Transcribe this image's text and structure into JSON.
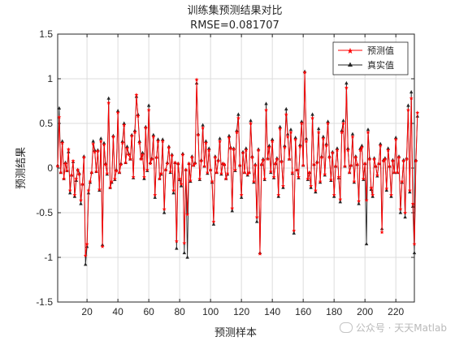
{
  "chart_data": {
    "type": "line",
    "title": "训练集预测结果对比",
    "subtitle": "RMSE=0.081707",
    "xlabel": "预测样本",
    "ylabel": "预测结果",
    "xlim": [
      1,
      232
    ],
    "ylim": [
      -1.5,
      1.5
    ],
    "xticks": [
      20,
      40,
      60,
      80,
      100,
      120,
      140,
      160,
      180,
      200,
      220
    ],
    "yticks": [
      -1.5,
      -1,
      -0.5,
      0,
      0.5,
      1,
      1.5
    ],
    "xtick_labels": [
      "20",
      "40",
      "60",
      "80",
      "100",
      "120",
      "140",
      "160",
      "180",
      "200",
      "220"
    ],
    "ytick_labels": [
      "-1.5",
      "-1",
      "-0.5",
      "0",
      "0.5",
      "1",
      "1.5"
    ],
    "grid": true,
    "legend_position": "top-right",
    "series": [
      {
        "name": "预测值",
        "color": "#ff0000",
        "marker": "star",
        "values": [
          0.02,
          0.57,
          -0.05,
          0.28,
          -0.12,
          0.05,
          -0.03,
          0.21,
          -0.25,
          -0.08,
          0.08,
          -0.3,
          -0.12,
          -0.02,
          -0.07,
          -0.36,
          -0.18,
          0.12,
          -0.98,
          -0.85,
          -0.25,
          -0.15,
          -0.05,
          0.27,
          0.18,
          -0.04,
          0.19,
          -0.24,
          0.3,
          -0.88,
          0.26,
          0.04,
          -0.06,
          0.73,
          -0.22,
          -0.15,
          0.35,
          -0.12,
          -0.03,
          0.62,
          -0.05,
          0.04,
          0.28,
          0.48,
          0.06,
          0.22,
          0.15,
          0.1,
          0.36,
          -0.1,
          0.4,
          0.82,
          0.58,
          0.28,
          0.1,
          0.15,
          -0.1,
          0.45,
          -0.02,
          0.65,
          0.05,
          0.1,
          0.35,
          -0.3,
          0.12,
          0.3,
          -0.12,
          -0.06,
          0.3,
          -0.46,
          -0.02,
          0.05,
          0.23,
          -0.04,
          0.14,
          -0.25,
          0.06,
          -0.82,
          0.05,
          -0.12,
          -0.18,
          0.15,
          -0.84,
          -0.02,
          -0.52,
          0.05,
          -0.14,
          0.12,
          0.03,
          0.05,
          0.99,
          0.37,
          -0.12,
          0.08,
          0.45,
          0.02,
          0.28,
          -0.05,
          0.2,
          -0.02,
          -0.15,
          -0.6,
          0.12,
          -0.05,
          0.08,
          0.3,
          -0.06,
          0.05,
          0.04,
          -0.12,
          -0.06,
          0.34,
          0.22,
          -0.45,
          0.21,
          -0.02,
          0.4,
          0.56,
          0.03,
          -0.3,
          0.17,
          -0.05,
          0.2,
          -0.07,
          -0.05,
          0.5,
          0.12,
          -0.15,
          0.03,
          -0.55,
          0.2,
          -0.96,
          0.04,
          0.09,
          -0.12,
          0.65,
          0.1,
          0.23,
          -0.04,
          0.3,
          -0.1,
          0.05,
          0.1,
          -0.3,
          0.44,
          0.07,
          -0.2,
          0.23,
          0.6,
          0.35,
          0.1,
          0.4,
          -0.05,
          -0.7,
          0.32,
          -0.02,
          -0.1,
          0.24,
          0.5,
          0.03,
          1.07,
          0.3,
          -0.12,
          -0.05,
          -0.2,
          0.56,
          0.04,
          -0.25,
          0.06,
          0.4,
          -0.15,
          0.12,
          0.33,
          -0.07,
          0.25,
          0.5,
          0.12,
          -0.13,
          0.17,
          -0.3,
          0.02,
          0.2,
          -0.1,
          -0.35,
          0.4,
          0.5,
          0.02,
          0.9,
          0.2,
          -0.05,
          0.03,
          0.35,
          -0.15,
          0.12,
          0.04,
          -0.37,
          0.2,
          0.23,
          -0.12,
          0.05,
          -0.36,
          0.4,
          0.1,
          -0.22,
          -0.3,
          0.1,
          0.02,
          -0.08,
          0.05,
          0.25,
          -0.72,
          0.08,
          0.1,
          -0.23,
          0.2,
          0.02,
          -0.3,
          0.08,
          -0.05,
          0.32,
          -0.05,
          0.12,
          -0.46,
          -0.15,
          0.08,
          -0.5,
          0.1,
          0.65,
          -0.25,
          0.78,
          -0.4,
          -0.85,
          0.08,
          0.62
        ]
      },
      {
        "name": "真实值",
        "color": "#262626",
        "marker": "triangle",
        "values": [
          0.03,
          0.67,
          -0.05,
          0.3,
          -0.12,
          0.06,
          -0.03,
          0.18,
          -0.28,
          -0.08,
          0.07,
          -0.32,
          -0.14,
          -0.02,
          -0.06,
          -0.4,
          -0.18,
          0.13,
          -1.08,
          -0.88,
          -0.28,
          -0.16,
          -0.05,
          0.3,
          0.2,
          -0.04,
          0.2,
          -0.25,
          0.33,
          -0.86,
          0.28,
          0.05,
          -0.07,
          0.78,
          -0.22,
          -0.16,
          0.36,
          -0.13,
          -0.02,
          0.64,
          -0.05,
          0.05,
          0.3,
          0.5,
          0.06,
          0.24,
          0.16,
          0.1,
          0.37,
          -0.11,
          0.42,
          0.8,
          0.6,
          0.3,
          0.11,
          0.17,
          -0.12,
          0.46,
          -0.03,
          0.7,
          0.06,
          0.11,
          0.37,
          -0.33,
          0.12,
          0.32,
          -0.12,
          -0.07,
          0.32,
          -0.5,
          -0.02,
          0.06,
          0.24,
          -0.05,
          0.15,
          -0.28,
          0.06,
          -0.9,
          0.05,
          -0.13,
          -0.2,
          0.16,
          -0.95,
          -0.02,
          -1.0,
          0.05,
          -0.15,
          0.13,
          0.03,
          0.06,
          0.95,
          0.38,
          -0.13,
          0.09,
          0.48,
          0.02,
          0.3,
          -0.06,
          0.22,
          -0.02,
          -0.16,
          -0.63,
          0.13,
          -0.05,
          0.09,
          0.33,
          -0.07,
          0.05,
          0.04,
          -0.12,
          -0.07,
          0.36,
          0.23,
          -0.48,
          0.22,
          -0.03,
          0.42,
          0.6,
          0.03,
          -0.33,
          0.18,
          -0.05,
          0.22,
          -0.08,
          -0.05,
          0.53,
          0.13,
          -0.16,
          0.04,
          -0.6,
          0.21,
          -0.95,
          0.04,
          0.1,
          -0.13,
          0.72,
          0.11,
          0.25,
          -0.05,
          0.32,
          -0.11,
          0.05,
          0.11,
          -0.32,
          0.46,
          0.08,
          -0.22,
          0.25,
          0.66,
          0.38,
          0.1,
          0.43,
          -0.06,
          -0.73,
          0.34,
          -0.02,
          -0.11,
          0.26,
          0.52,
          0.03,
          1.08,
          0.33,
          -0.13,
          -0.05,
          -0.22,
          0.6,
          0.04,
          -0.27,
          0.07,
          0.44,
          -0.16,
          0.13,
          0.35,
          -0.08,
          0.27,
          0.52,
          0.13,
          -0.14,
          0.18,
          -0.32,
          0.02,
          0.22,
          -0.11,
          -0.38,
          0.42,
          0.53,
          0.02,
          0.95,
          0.22,
          -0.05,
          0.03,
          0.38,
          -0.16,
          0.13,
          0.04,
          -0.4,
          0.22,
          0.25,
          -0.13,
          0.05,
          -0.85,
          0.43,
          0.11,
          -0.24,
          -0.32,
          0.11,
          0.02,
          -0.09,
          0.05,
          0.27,
          -0.68,
          0.09,
          0.11,
          -0.25,
          0.22,
          0.02,
          -0.32,
          0.09,
          -0.05,
          0.34,
          -0.05,
          0.13,
          -0.5,
          -0.16,
          0.09,
          -0.55,
          0.11,
          0.7,
          -0.27,
          0.85,
          -0.43,
          -0.95,
          0.09,
          0.58
        ]
      }
    ]
  },
  "watermark": "公众号 · 天天Matlab"
}
